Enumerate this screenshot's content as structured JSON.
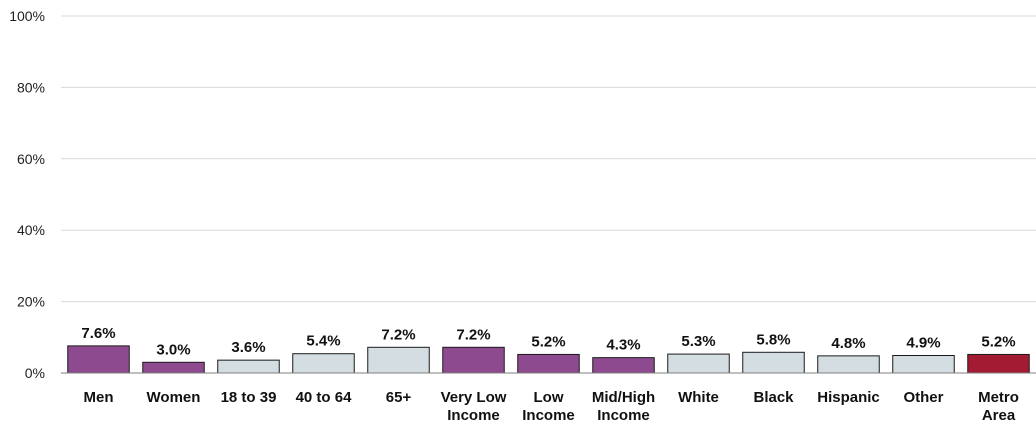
{
  "chart_data": {
    "type": "bar",
    "categories": [
      "Men",
      "Women",
      "18 to 39",
      "40 to 64",
      "65+",
      "Very Low Income",
      "Low Income",
      "Mid/High Income",
      "White",
      "Black",
      "Hispanic",
      "Other",
      "Metro Area"
    ],
    "category_lines": [
      [
        "Men"
      ],
      [
        "Women"
      ],
      [
        "18 to 39"
      ],
      [
        "40 to 64"
      ],
      [
        "65+"
      ],
      [
        "Very Low",
        "Income"
      ],
      [
        "Low",
        "Income"
      ],
      [
        "Mid/High",
        "Income"
      ],
      [
        "White"
      ],
      [
        "Black"
      ],
      [
        "Hispanic"
      ],
      [
        "Other"
      ],
      [
        "Metro",
        "Area"
      ]
    ],
    "values": [
      7.6,
      3.0,
      3.6,
      5.4,
      7.2,
      7.2,
      5.2,
      4.3,
      5.3,
      5.8,
      4.8,
      4.9,
      5.2
    ],
    "value_labels": [
      "7.6%",
      "3.0%",
      "3.6%",
      "5.4%",
      "7.2%",
      "7.2%",
      "5.2%",
      "4.3%",
      "5.3%",
      "5.8%",
      "4.8%",
      "4.9%",
      "5.2%"
    ],
    "bar_colors": [
      "#8e4a8f",
      "#8e4a8f",
      "#d3dde2",
      "#d3dde2",
      "#d3dde2",
      "#8e4a8f",
      "#8e4a8f",
      "#8e4a8f",
      "#d3dde2",
      "#d3dde2",
      "#d3dde2",
      "#d3dde2",
      "#a31b32"
    ],
    "ylim": [
      0,
      100
    ],
    "yticks": [
      0,
      20,
      40,
      60,
      80,
      100
    ],
    "ytick_labels": [
      "0%",
      "20%",
      "40%",
      "60%",
      "80%",
      "100%"
    ],
    "grid": true,
    "title": "",
    "xlabel": "",
    "ylabel": ""
  }
}
